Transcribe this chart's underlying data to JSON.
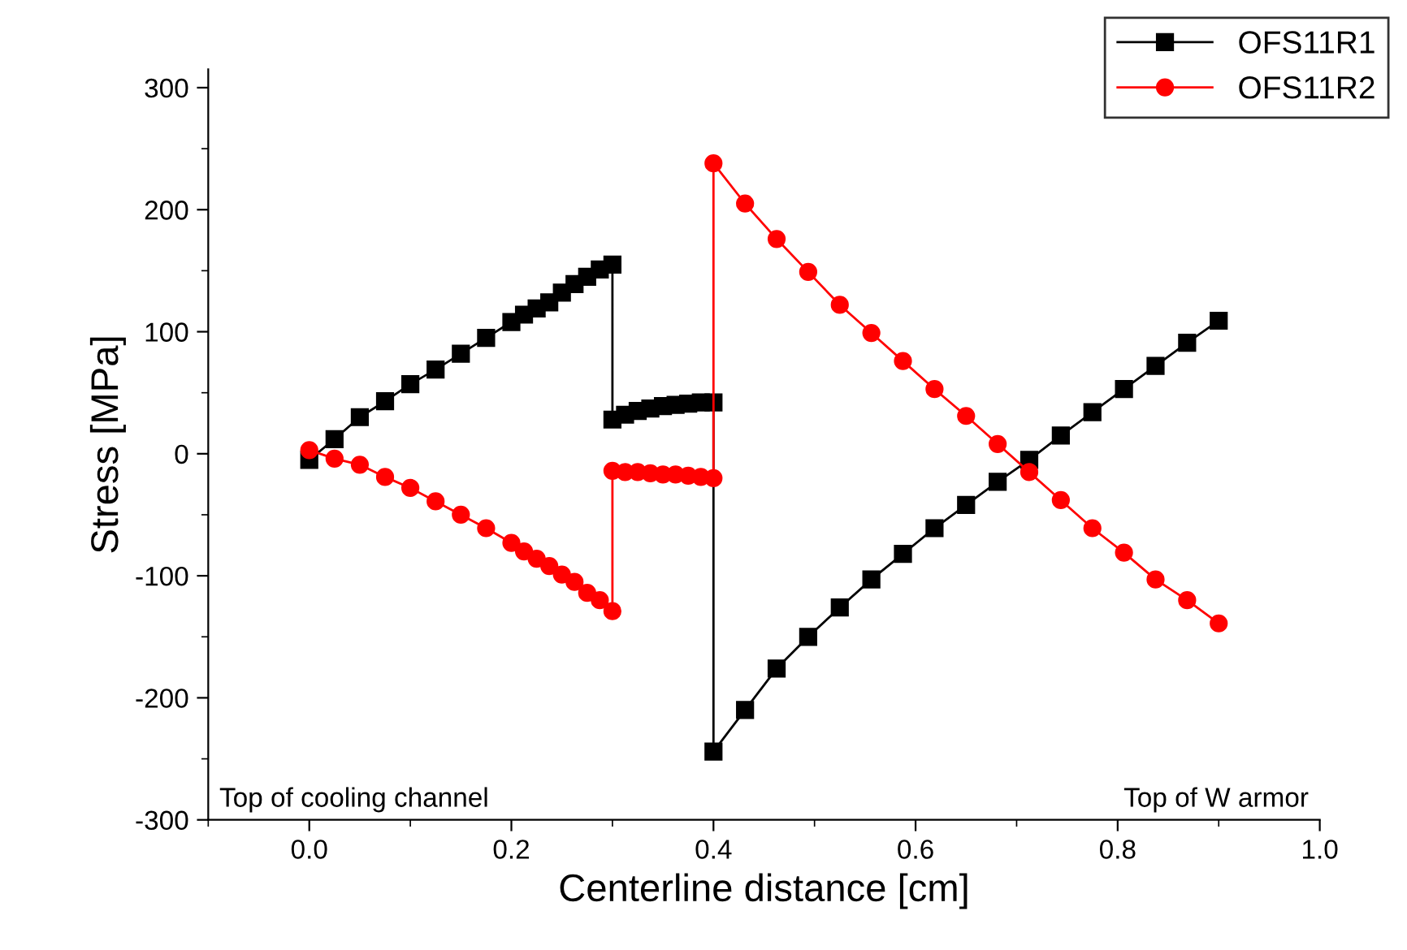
{
  "chart_data": {
    "type": "line",
    "xlabel": "Centerline distance [cm]",
    "ylabel": "Stress [MPa]",
    "xlim": [
      -0.1,
      1.0
    ],
    "xticks": [
      {
        "value": 0,
        "label": "0.0"
      },
      0.2,
      0.4,
      0.6,
      0.8,
      {
        "value": 1.0,
        "label": "1.0"
      }
    ],
    "ylim": [
      -300,
      315
    ],
    "yticks": [
      -300,
      -200,
      -100,
      0,
      100,
      200,
      300
    ],
    "grid": false,
    "legend": "top right",
    "line_style": "solid",
    "annotations": [
      "Top of cooling channel",
      "Top of W armor"
    ],
    "series": [
      {
        "name": "OFS11R1",
        "color": "#000000",
        "marker": "square",
        "x": [
          0,
          0.025,
          0.05,
          0.075,
          0.1,
          0.125,
          0.15,
          0.175,
          0.2,
          0.2125,
          0.225,
          0.2375,
          0.25,
          0.2625,
          0.275,
          0.2875,
          0.3,
          0.3,
          0.3125,
          0.325,
          0.3375,
          0.35,
          0.3625,
          0.375,
          0.3875,
          0.4,
          0.4,
          0.43125,
          0.4625,
          0.49375,
          0.525,
          0.55625,
          0.5875,
          0.61875,
          0.65,
          0.68125,
          0.7125,
          0.74375,
          0.775,
          0.80625,
          0.8375,
          0.86875,
          0.9
        ],
        "values": [
          -5,
          12,
          30,
          43,
          57,
          69,
          82,
          95,
          108,
          114,
          119,
          124,
          132,
          139,
          145,
          151,
          155,
          28,
          32,
          35,
          37,
          39,
          40,
          41,
          42,
          42,
          -244,
          -210,
          -176,
          -150,
          -126,
          -103,
          -82,
          -61,
          -42,
          -23,
          -5,
          15,
          34,
          53,
          72,
          91,
          109
        ]
      },
      {
        "name": "OFS11R2",
        "color": "#ff0000",
        "marker": "circle",
        "x": [
          0,
          0.025,
          0.05,
          0.075,
          0.1,
          0.125,
          0.15,
          0.175,
          0.2,
          0.2125,
          0.225,
          0.2375,
          0.25,
          0.2625,
          0.275,
          0.2875,
          0.3,
          0.3,
          0.3125,
          0.325,
          0.3375,
          0.35,
          0.3625,
          0.375,
          0.3875,
          0.4,
          0.4,
          0.43125,
          0.4625,
          0.49375,
          0.525,
          0.55625,
          0.5875,
          0.61875,
          0.65,
          0.68125,
          0.7125,
          0.74375,
          0.775,
          0.80625,
          0.8375,
          0.86875,
          0.9
        ],
        "values": [
          3,
          -4,
          -9,
          -19,
          -28,
          -39,
          -50,
          -61,
          -73,
          -80,
          -86,
          -92,
          -99,
          -105,
          -114,
          -120,
          -129,
          -14,
          -15,
          -15,
          -16,
          -17,
          -17,
          -18,
          -19,
          -20,
          238,
          205,
          176,
          149,
          122,
          99,
          76,
          53,
          31,
          8,
          -15,
          -38,
          -61,
          -81,
          -103,
          -120,
          -139
        ]
      }
    ]
  }
}
